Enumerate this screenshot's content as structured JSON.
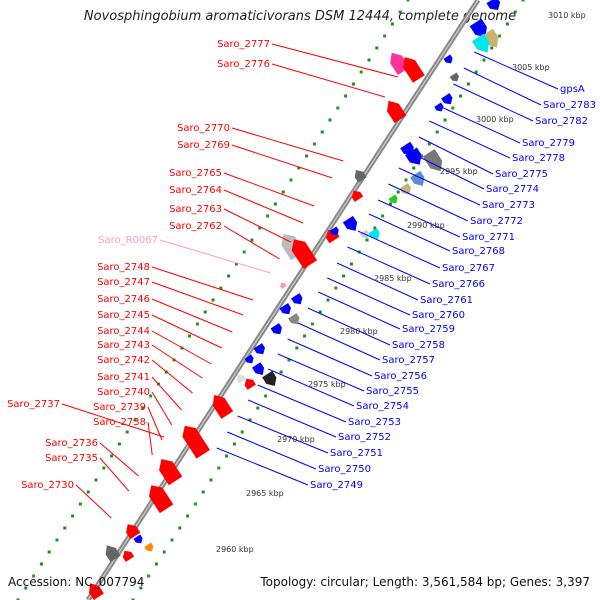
{
  "title": "Novosphingobium aromaticivorans DSM 12444, complete genome",
  "footer": {
    "accession": "Accession: NC_007794",
    "topology": "Topology: circular; Length: 3,561,584 bp; Genes: 3,397"
  },
  "colors": {
    "forward_strand": "#ff0000",
    "reverse_strand": "#0000ff",
    "rna": "#ff99cc",
    "backbone": "#888888",
    "gc_dots": "#228b22"
  },
  "kbp_ticks": [
    "3010 kbp",
    "3005 kbp",
    "3000 kbp",
    "2995 kbp",
    "2990 kbp",
    "2985 kbp",
    "2980 kbp",
    "2975 kbp",
    "2970 kbp",
    "2965 kbp",
    "2960 kbp"
  ],
  "left_labels": [
    {
      "text": "Saro_2777",
      "color": "#ff0000"
    },
    {
      "text": "Saro_2776",
      "color": "#ff0000"
    },
    {
      "text": "Saro_2770",
      "color": "#ff0000"
    },
    {
      "text": "Saro_2769",
      "color": "#ff0000"
    },
    {
      "text": "Saro_2765",
      "color": "#ff0000"
    },
    {
      "text": "Saro_2764",
      "color": "#ff0000"
    },
    {
      "text": "Saro_2763",
      "color": "#ff0000"
    },
    {
      "text": "Saro_2762",
      "color": "#ff0000"
    },
    {
      "text": "Saro_R0067",
      "color": "#ff99cc"
    },
    {
      "text": "Saro_2748",
      "color": "#ff0000"
    },
    {
      "text": "Saro_2747",
      "color": "#ff0000"
    },
    {
      "text": "Saro_2746",
      "color": "#ff0000"
    },
    {
      "text": "Saro_2745",
      "color": "#ff0000"
    },
    {
      "text": "Saro_2744",
      "color": "#ff0000"
    },
    {
      "text": "Saro_2743",
      "color": "#ff0000"
    },
    {
      "text": "Saro_2742",
      "color": "#ff0000"
    },
    {
      "text": "Saro_2741",
      "color": "#ff0000"
    },
    {
      "text": "Saro_2740",
      "color": "#ff0000"
    },
    {
      "text": "Saro_2737",
      "color": "#ff0000"
    },
    {
      "text": "Saro_2739",
      "color": "#ff0000"
    },
    {
      "text": "Saro_2738",
      "color": "#ff0000"
    },
    {
      "text": "Saro_2736",
      "color": "#ff0000"
    },
    {
      "text": "Saro_2735",
      "color": "#ff0000"
    },
    {
      "text": "Saro_2730",
      "color": "#ff0000"
    }
  ],
  "right_labels": [
    {
      "text": "gpsA",
      "color": "#0000ff"
    },
    {
      "text": "Saro_2783",
      "color": "#0000ff"
    },
    {
      "text": "Saro_2782",
      "color": "#0000ff"
    },
    {
      "text": "Saro_2779",
      "color": "#0000ff"
    },
    {
      "text": "Saro_2778",
      "color": "#0000ff"
    },
    {
      "text": "Saro_2775",
      "color": "#0000ff"
    },
    {
      "text": "Saro_2774",
      "color": "#0000ff"
    },
    {
      "text": "Saro_2773",
      "color": "#0000ff"
    },
    {
      "text": "Saro_2772",
      "color": "#0000ff"
    },
    {
      "text": "Saro_2771",
      "color": "#0000ff"
    },
    {
      "text": "Saro_2768",
      "color": "#0000ff"
    },
    {
      "text": "Saro_2767",
      "color": "#0000ff"
    },
    {
      "text": "Saro_2766",
      "color": "#0000ff"
    },
    {
      "text": "Saro_2761",
      "color": "#0000ff"
    },
    {
      "text": "Saro_2760",
      "color": "#0000ff"
    },
    {
      "text": "Saro_2759",
      "color": "#0000ff"
    },
    {
      "text": "Saro_2758",
      "color": "#0000ff"
    },
    {
      "text": "Saro_2757",
      "color": "#0000ff"
    },
    {
      "text": "Saro_2756",
      "color": "#0000ff"
    },
    {
      "text": "Saro_2755",
      "color": "#0000ff"
    },
    {
      "text": "Saro_2754",
      "color": "#0000ff"
    },
    {
      "text": "Saro_2753",
      "color": "#0000ff"
    },
    {
      "text": "Saro_2752",
      "color": "#0000ff"
    },
    {
      "text": "Saro_2751",
      "color": "#0000ff"
    },
    {
      "text": "Saro_2750",
      "color": "#0000ff"
    },
    {
      "text": "Saro_2749",
      "color": "#0000ff"
    }
  ]
}
